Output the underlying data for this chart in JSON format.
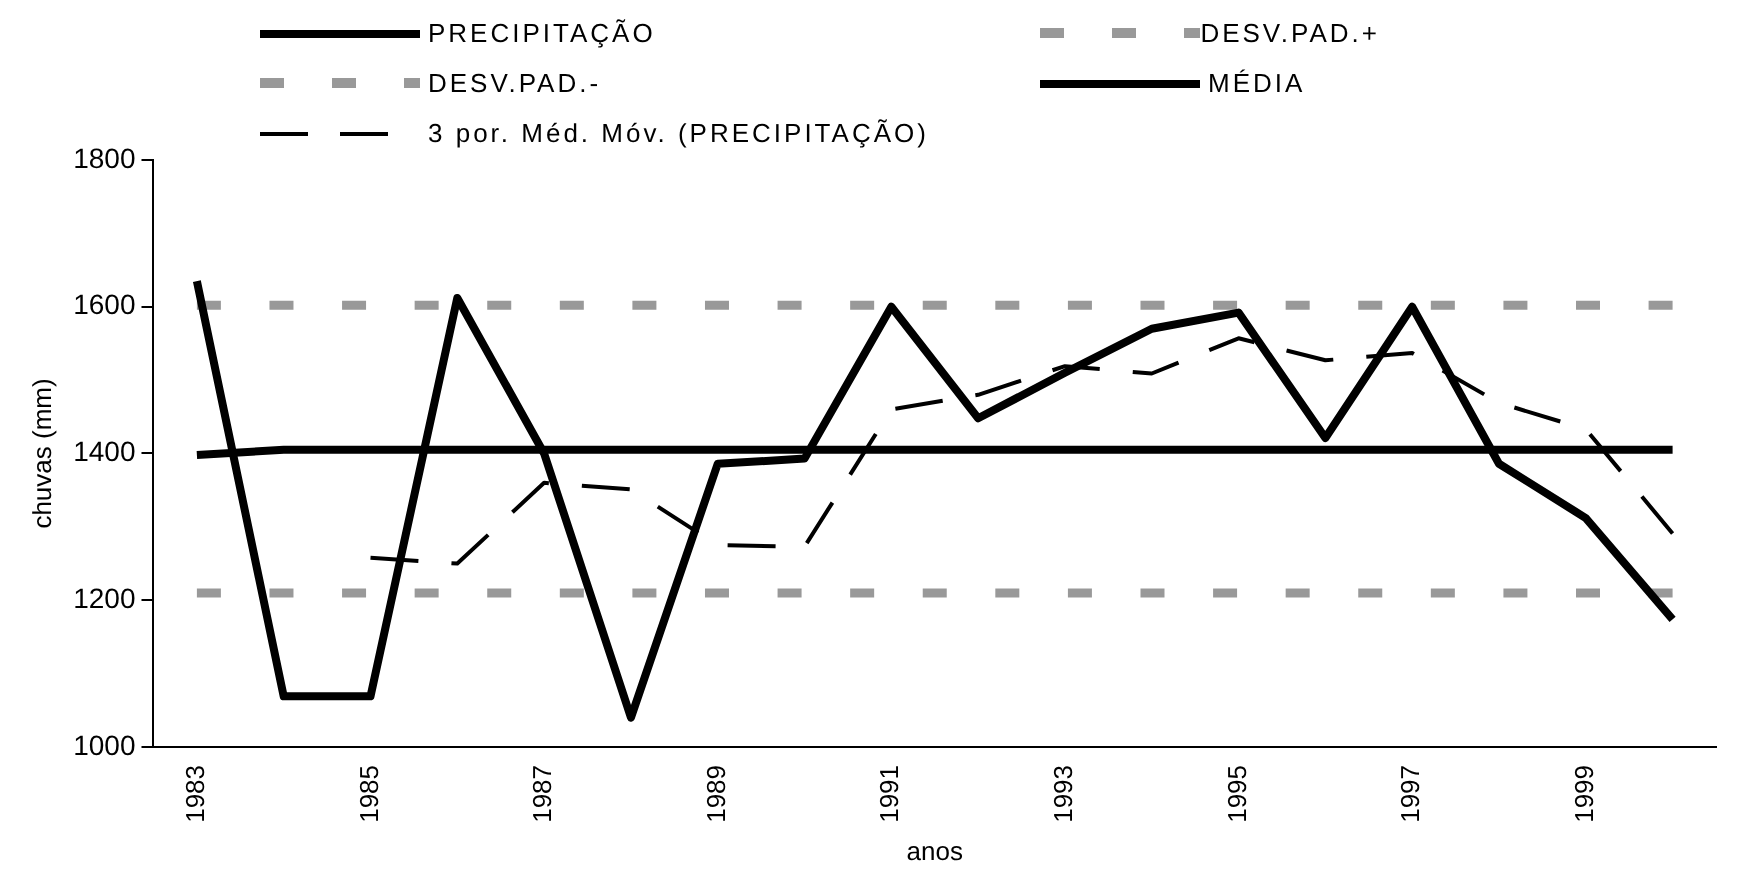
{
  "chart_data": {
    "type": "line",
    "xlabel": "anos",
    "ylabel": "chuvas (mm)",
    "categories": [
      "1983",
      null,
      "1985",
      null,
      "1987",
      null,
      "1989",
      null,
      "1991",
      null,
      "1993",
      null,
      "1995",
      null,
      "1997",
      null,
      "1999",
      null
    ],
    "series": [
      {
        "name": "PRECIPITAÇÃO",
        "color": "#000000",
        "line_style": "solid",
        "values": [
          1635,
          1069,
          1069,
          1612,
          1400,
          1040,
          1386,
          1393,
          1600,
          1448,
          1510,
          1570,
          1592,
          1421,
          1600,
          1386,
          1312,
          1174
        ]
      },
      {
        "name": "DESV.PAD.+",
        "color": "#999999",
        "line_style": "dashed",
        "values": [
          1602,
          1602,
          1602,
          1602,
          1602,
          1602,
          1602,
          1602,
          1602,
          1602,
          1602,
          1602,
          1602,
          1602,
          1602,
          1602,
          1602,
          1602
        ]
      },
      {
        "name": "DESV.PAD.-",
        "color": "#999999",
        "line_style": "dashed",
        "values": [
          1210,
          1210,
          1210,
          1210,
          1210,
          1210,
          1210,
          1210,
          1210,
          1210,
          1210,
          1210,
          1210,
          1210,
          1210,
          1210,
          1210,
          1210
        ]
      },
      {
        "name": "MÉDIA",
        "color": "#000000",
        "line_style": "solid",
        "values": [
          1398,
          1405,
          1405,
          1405,
          1405,
          1405,
          1405,
          1405,
          1405,
          1405,
          1405,
          1405,
          1405,
          1405,
          1405,
          1405,
          1405,
          1405
        ]
      },
      {
        "name": "3 por. Méd. Móv. (PRECIPITAÇÃO)",
        "color": "#000000",
        "line_style": "dashed",
        "values": [
          null,
          null,
          1258,
          1250,
          1360,
          1351,
          1275,
          1273,
          1460,
          1480,
          1519,
          1509,
          1557,
          1527,
          1537,
          1469,
          1433,
          1291
        ]
      }
    ],
    "ylim": [
      1000,
      1800
    ],
    "yticks": [
      1000,
      1200,
      1400,
      1600,
      1800
    ],
    "grid": false,
    "legend": "top",
    "marker": "none"
  }
}
